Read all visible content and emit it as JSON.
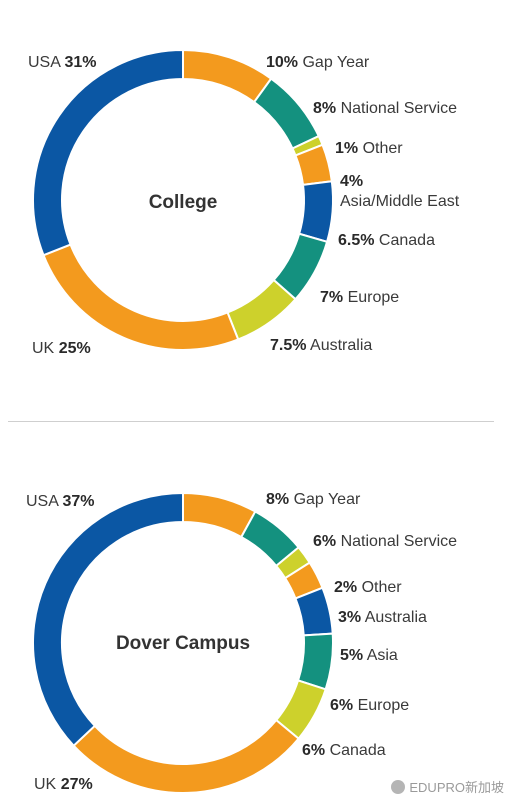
{
  "chart_data": [
    {
      "type": "pie",
      "title": "College",
      "colors_note": "donut",
      "slices": [
        {
          "label": "USA",
          "value": 31,
          "pct_text": "31%",
          "color": "#0b57a4"
        },
        {
          "label": "Gap Year",
          "value": 10,
          "pct_text": "10%",
          "color": "#f39a1e"
        },
        {
          "label": "National Service",
          "value": 8,
          "pct_text": "8%",
          "color": "#14917f"
        },
        {
          "label": "Other",
          "value": 1,
          "pct_text": "1%",
          "color": "#cdd12c"
        },
        {
          "label": "Asia/Middle East",
          "value": 4,
          "pct_text": "4%",
          "color": "#f39a1e"
        },
        {
          "label": "Canada",
          "value": 6.5,
          "pct_text": "6.5%",
          "color": "#0b57a4"
        },
        {
          "label": "Europe",
          "value": 7,
          "pct_text": "7%",
          "color": "#14917f"
        },
        {
          "label": "Australia",
          "value": 7.5,
          "pct_text": "7.5%",
          "color": "#cdd12c"
        },
        {
          "label": "UK",
          "value": 25,
          "pct_text": "25%",
          "color": "#f39a1e"
        }
      ]
    },
    {
      "type": "pie",
      "title": "Dover Campus",
      "slices": [
        {
          "label": "USA",
          "value": 37,
          "pct_text": "37%",
          "color": "#0b57a4"
        },
        {
          "label": "Gap Year",
          "value": 8,
          "pct_text": "8%",
          "color": "#f39a1e"
        },
        {
          "label": "National Service",
          "value": 6,
          "pct_text": "6%",
          "color": "#14917f"
        },
        {
          "label": "Other",
          "value": 2,
          "pct_text": "2%",
          "color": "#cdd12c"
        },
        {
          "label": "Australia",
          "value": 3,
          "pct_text": "3%",
          "color": "#f39a1e"
        },
        {
          "label": "Asia",
          "value": 5,
          "pct_text": "5%",
          "color": "#0b57a4"
        },
        {
          "label": "Europe",
          "value": 6,
          "pct_text": "6%",
          "color": "#14917f"
        },
        {
          "label": "Canada",
          "value": 6,
          "pct_text": "6%",
          "color": "#cdd12c"
        },
        {
          "label": "UK",
          "value": 27,
          "pct_text": "27%",
          "color": "#f39a1e"
        }
      ]
    }
  ],
  "watermark": "EDUPRO新加坡"
}
